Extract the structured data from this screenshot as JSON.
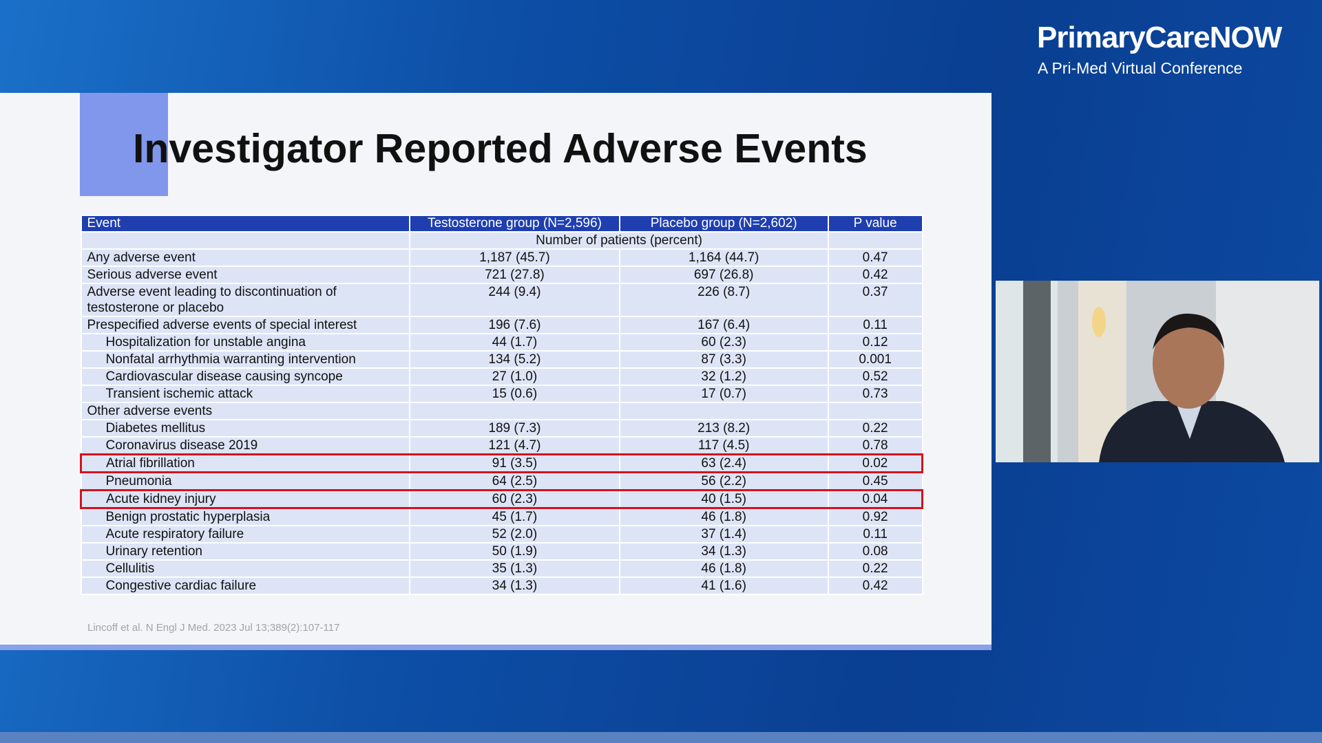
{
  "brand": {
    "name": "PrimaryCareNOW",
    "tagline": "A Pri-Med Virtual Conference"
  },
  "slide": {
    "title": "Investigator Reported Adverse Events",
    "table": {
      "header": [
        "Event",
        "Testosterone group (N=2,596)",
        "Placebo group (N=2,602)",
        "P value"
      ],
      "note": "Number of patients (percent)",
      "rows": [
        [
          "Any adverse event",
          "1,187 (45.7)",
          "1,164 (44.7)",
          "0.47"
        ],
        [
          "Serious adverse event",
          "721 (27.8)",
          "697 (26.8)",
          "0.42"
        ],
        [
          "Adverse event leading to discontinuation of testosterone or placebo",
          "244 (9.4)",
          "226 (8.7)",
          "0.37"
        ],
        [
          "Prespecified adverse events of special interest",
          "196 (7.6)",
          "167 (6.4)",
          "0.11"
        ],
        [
          "Hospitalization for unstable angina",
          "44 (1.7)",
          "60 (2.3)",
          "0.12"
        ],
        [
          "Nonfatal arrhythmia warranting intervention",
          "134 (5.2)",
          "87 (3.3)",
          "0.001"
        ],
        [
          "Cardiovascular disease causing syncope",
          "27 (1.0)",
          "32 (1.2)",
          "0.52"
        ],
        [
          "Transient ischemic attack",
          "15 (0.6)",
          "17 (0.7)",
          "0.73"
        ],
        [
          "Other adverse events",
          "",
          "",
          ""
        ],
        [
          "Diabetes mellitus",
          "189 (7.3)",
          "213 (8.2)",
          "0.22"
        ],
        [
          "Coronavirus disease 2019",
          "121 (4.7)",
          "117 (4.5)",
          "0.78"
        ],
        [
          "Atrial fibrillation",
          "91 (3.5)",
          "63 (2.4)",
          "0.02"
        ],
        [
          "Pneumonia",
          "64 (2.5)",
          "56 (2.2)",
          "0.45"
        ],
        [
          "Acute kidney injury",
          "60 (2.3)",
          "40 (1.5)",
          "0.04"
        ],
        [
          "Benign prostatic hyperplasia",
          "45 (1.7)",
          "46 (1.8)",
          "0.92"
        ],
        [
          "Acute respiratory failure",
          "52 (2.0)",
          "37 (1.4)",
          "0.11"
        ],
        [
          "Urinary retention",
          "50 (1.9)",
          "34 (1.3)",
          "0.08"
        ],
        [
          "Cellulitis",
          "35 (1.3)",
          "46 (1.8)",
          "0.22"
        ],
        [
          "Congestive cardiac failure",
          "34 (1.3)",
          "41 (1.6)",
          "0.42"
        ]
      ]
    },
    "citation": "Lincoff et al. N Engl J Med. 2023 Jul 13;389(2):107-117"
  }
}
